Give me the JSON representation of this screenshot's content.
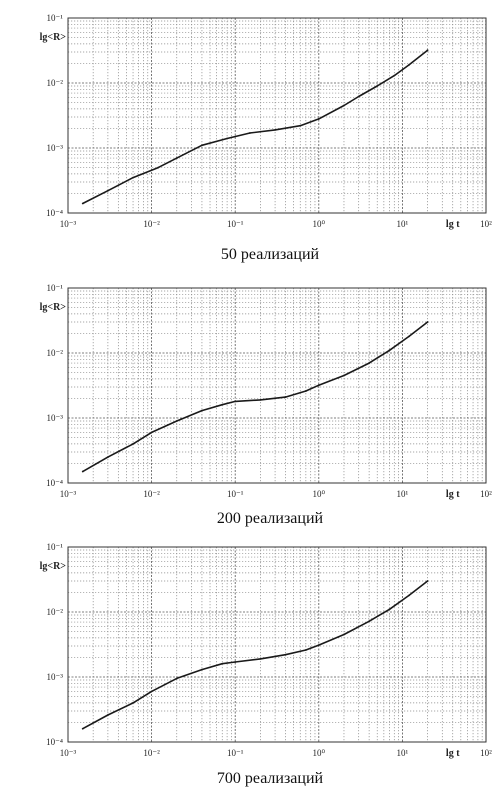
{
  "chart_data": [
    {
      "type": "line",
      "title": "",
      "caption": "50 реализаций",
      "xlabel": "lg t",
      "ylabel": "lg<R>",
      "xscale": "log",
      "yscale": "log",
      "xlim": [
        0.001,
        100
      ],
      "ylim": [
        0.0001,
        0.1
      ],
      "grid": true,
      "x_tick_labels": [
        "10⁻³",
        "10⁻²",
        "10⁻¹",
        "10⁰",
        "10¹",
        "10²"
      ],
      "y_tick_labels": [
        "10⁻⁴",
        "10⁻³",
        "10⁻²",
        "10⁻¹"
      ],
      "series": [
        {
          "x": [
            0.0015,
            0.003,
            0.006,
            0.012,
            0.02,
            0.04,
            0.08,
            0.15,
            0.3,
            0.6,
            1,
            2,
            3,
            5,
            8,
            12,
            20
          ],
          "y": [
            0.00014,
            0.00022,
            0.00035,
            0.0005,
            0.0007,
            0.0011,
            0.0014,
            0.0017,
            0.0019,
            0.0022,
            0.0028,
            0.0045,
            0.0062,
            0.009,
            0.013,
            0.019,
            0.032
          ]
        }
      ]
    },
    {
      "type": "line",
      "title": "",
      "caption": "200 реализаций",
      "xlabel": "lg t",
      "ylabel": "lg<R>",
      "xscale": "log",
      "yscale": "log",
      "xlim": [
        0.001,
        100
      ],
      "ylim": [
        0.0001,
        0.1
      ],
      "grid": true,
      "x_tick_labels": [
        "10⁻³",
        "10⁻²",
        "10⁻¹",
        "10⁰",
        "10¹",
        "10²"
      ],
      "y_tick_labels": [
        "10⁻⁴",
        "10⁻³",
        "10⁻²",
        "10⁻¹"
      ],
      "series": [
        {
          "x": [
            0.0015,
            0.003,
            0.006,
            0.01,
            0.02,
            0.04,
            0.07,
            0.1,
            0.2,
            0.4,
            0.7,
            1,
            2,
            4,
            7,
            12,
            20
          ],
          "y": [
            0.00015,
            0.00025,
            0.0004,
            0.0006,
            0.0009,
            0.0013,
            0.0016,
            0.0018,
            0.0019,
            0.0021,
            0.0026,
            0.0032,
            0.0045,
            0.007,
            0.011,
            0.018,
            0.03
          ]
        }
      ]
    },
    {
      "type": "line",
      "title": "",
      "caption": "700 реализаций",
      "xlabel": "lg t",
      "ylabel": "lg<R>",
      "xscale": "log",
      "yscale": "log",
      "xlim": [
        0.001,
        100
      ],
      "ylim": [
        0.0001,
        0.1
      ],
      "grid": true,
      "x_tick_labels": [
        "10⁻³",
        "10⁻²",
        "10⁻¹",
        "10⁰",
        "10¹",
        "10²"
      ],
      "y_tick_labels": [
        "10⁻⁴",
        "10⁻³",
        "10⁻²",
        "10⁻¹"
      ],
      "series": [
        {
          "x": [
            0.0015,
            0.003,
            0.006,
            0.01,
            0.02,
            0.04,
            0.07,
            0.1,
            0.2,
            0.4,
            0.7,
            1,
            2,
            4,
            7,
            12,
            20
          ],
          "y": [
            0.00016,
            0.00026,
            0.0004,
            0.0006,
            0.00095,
            0.0013,
            0.0016,
            0.0017,
            0.0019,
            0.0022,
            0.0026,
            0.0031,
            0.0045,
            0.0072,
            0.011,
            0.018,
            0.03
          ]
        }
      ]
    }
  ]
}
